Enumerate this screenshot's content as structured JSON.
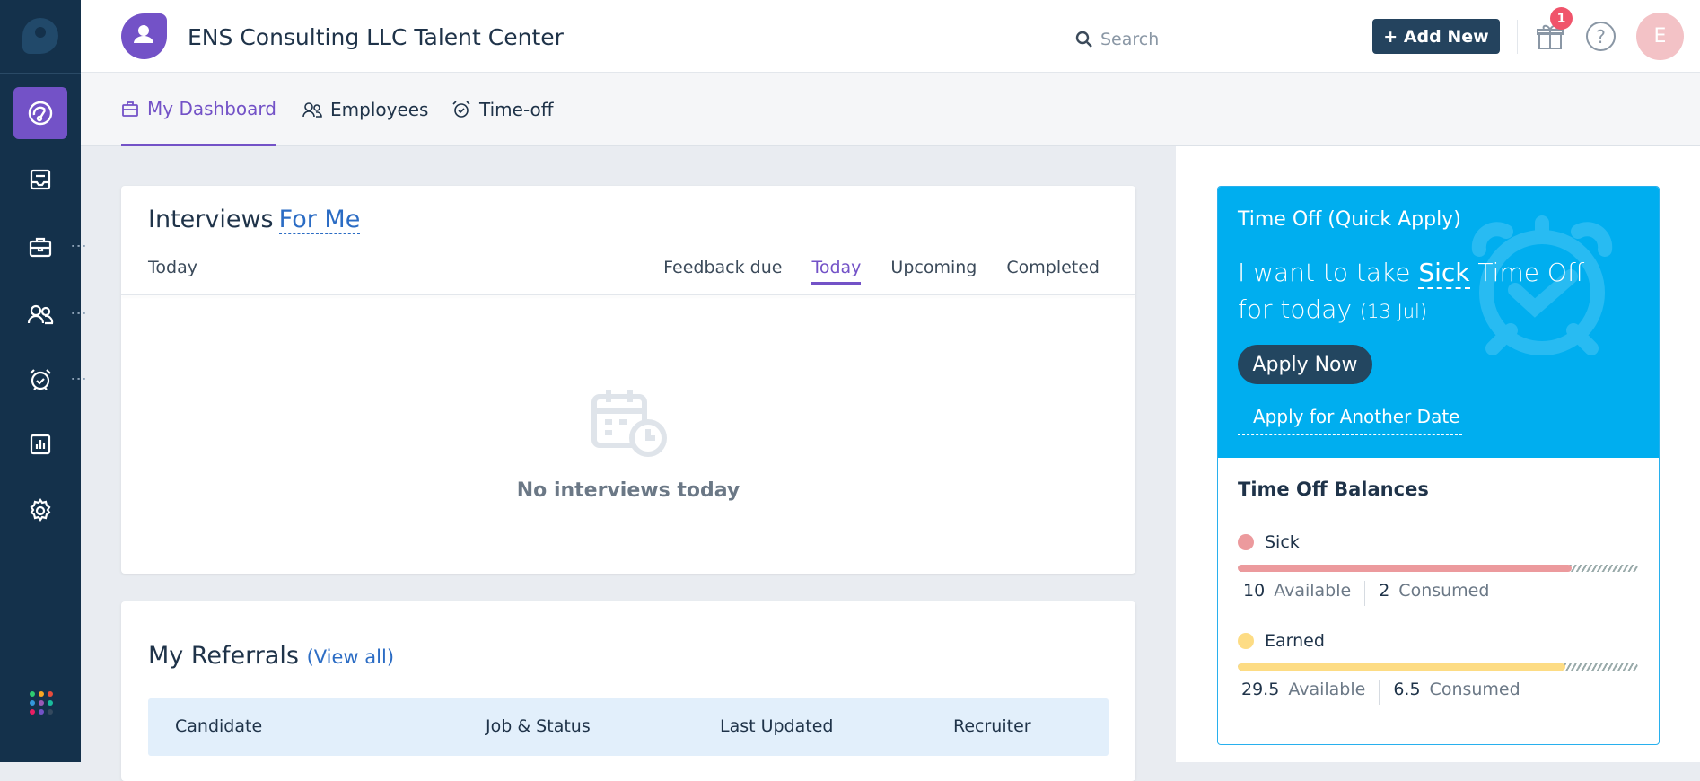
{
  "app": {
    "title": "ENS Consulting LLC Talent Center"
  },
  "header": {
    "search_placeholder": "Search",
    "add_new": "+ Add New",
    "notif_count": "1",
    "help": "?",
    "avatar_initial": "E"
  },
  "tabs": [
    {
      "label": "My Dashboard",
      "icon": "briefcase-icon",
      "active": true
    },
    {
      "label": "Employees",
      "icon": "users-icon"
    },
    {
      "label": "Time-off",
      "icon": "alarm-clock-icon"
    }
  ],
  "sidebar": {
    "items": [
      "dashboard-icon",
      "inbox-icon",
      "briefcase-icon",
      "users-icon",
      "alarm-clock-icon",
      "report-icon",
      "gear-icon"
    ],
    "apps_colors": [
      "#2ecc71",
      "#f5a623",
      "#e74c3c",
      "#3498db",
      "#9b59b6",
      "#1abc9c",
      "#e91e63",
      "#7352c7",
      "#34495e"
    ]
  },
  "interviews": {
    "title": "Interviews",
    "filter": "For Me",
    "period": "Today",
    "subtabs": [
      "Feedback due",
      "Today",
      "Upcoming",
      "Completed"
    ],
    "active_subtab": "Today",
    "empty": "No interviews today"
  },
  "referrals": {
    "title": "My Referrals",
    "view_all": "(View all)",
    "columns": [
      "Candidate",
      "Job & Status",
      "Last Updated",
      "Recruiter"
    ]
  },
  "timeoff": {
    "title": "Time Off (Quick Apply)",
    "sentence_pre": "I want to take",
    "type": "Sick",
    "sentence_post": "Time Off for today",
    "date": "(13 Jul)",
    "apply_now": "Apply Now",
    "another": "Apply for Another Date",
    "balances_title": "Time Off Balances",
    "balances": [
      {
        "name": "Sick",
        "color": "#ec9a9d",
        "available": "10",
        "consumed": "2",
        "available_label": "Available",
        "consumed_label": "Consumed",
        "fraction": 0.833
      },
      {
        "name": "Earned",
        "color": "#fddc84",
        "available": "29.5",
        "consumed": "6.5",
        "available_label": "Available",
        "consumed_label": "Consumed",
        "fraction": 0.819
      }
    ]
  },
  "colors": {
    "accent": "#7352c7",
    "sidebar": "#14314b",
    "quick_apply": "#00aeef"
  }
}
